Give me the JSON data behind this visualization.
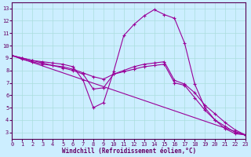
{
  "xlabel": "Windchill (Refroidissement éolien,°C)",
  "xlim": [
    0,
    23
  ],
  "ylim": [
    2.5,
    13.5
  ],
  "xticks": [
    0,
    1,
    2,
    3,
    4,
    5,
    6,
    7,
    8,
    9,
    10,
    11,
    12,
    13,
    14,
    15,
    16,
    17,
    18,
    19,
    20,
    21,
    22,
    23
  ],
  "yticks": [
    3,
    4,
    5,
    6,
    7,
    8,
    9,
    10,
    11,
    12,
    13
  ],
  "line_color": "#990099",
  "background_color": "#cceeff",
  "grid_color": "#aadddd",
  "line1_x": [
    0,
    1,
    2,
    3,
    4,
    5,
    6,
    7,
    8,
    9,
    10,
    11,
    12,
    13,
    14,
    15,
    16,
    17,
    18,
    19,
    20,
    21,
    22,
    23
  ],
  "line1_y": [
    9.2,
    9.0,
    8.8,
    8.7,
    8.6,
    8.5,
    8.3,
    7.2,
    5.0,
    5.4,
    7.9,
    10.8,
    11.7,
    12.4,
    12.9,
    12.5,
    12.2,
    10.2,
    6.9,
    5.0,
    4.0,
    3.3,
    2.9,
    2.8
  ],
  "line2_x": [
    0,
    1,
    2,
    3,
    4,
    5,
    6,
    7,
    8,
    9,
    10,
    11,
    12,
    13,
    14,
    15,
    16,
    17,
    18,
    19,
    20,
    21,
    22,
    23
  ],
  "line2_y": [
    9.2,
    8.9,
    8.7,
    8.5,
    8.4,
    8.3,
    8.1,
    7.8,
    7.5,
    7.3,
    7.7,
    7.9,
    8.1,
    8.3,
    8.4,
    8.5,
    7.0,
    6.8,
    5.8,
    4.8,
    4.0,
    3.5,
    3.0,
    2.8
  ],
  "line3_x": [
    0,
    23
  ],
  "line3_y": [
    9.2,
    2.8
  ],
  "line4_x": [
    0,
    1,
    2,
    3,
    4,
    5,
    6,
    7,
    8,
    9,
    10,
    11,
    12,
    13,
    14,
    15,
    16,
    17,
    18,
    19,
    20,
    21,
    22,
    23
  ],
  "line4_y": [
    9.2,
    9.0,
    8.8,
    8.6,
    8.4,
    8.2,
    8.0,
    7.7,
    6.5,
    6.6,
    7.7,
    8.0,
    8.3,
    8.5,
    8.6,
    8.7,
    7.2,
    6.9,
    6.2,
    5.2,
    4.5,
    3.8,
    3.2,
    2.8
  ]
}
